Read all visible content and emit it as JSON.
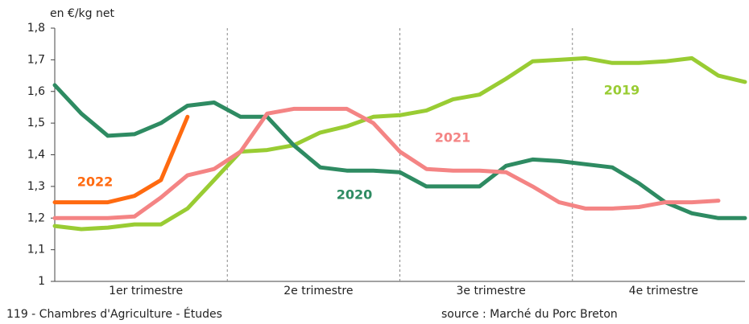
{
  "chart_data": {
    "type": "line",
    "y_unit_label": "en €/kg net",
    "quarters": [
      "1er trimestre",
      "2e trimestre",
      "3e trimestre",
      "4e trimestre"
    ],
    "footer_left": "119 - Chambres d'Agriculture - Études",
    "footer_right": "source :  Marché du Porc Breton",
    "x": [
      0,
      2,
      4,
      6,
      8,
      10,
      12,
      14,
      16,
      18,
      20,
      22,
      24,
      26,
      28,
      30,
      32,
      34,
      36,
      38,
      40,
      42,
      44,
      46,
      48,
      50,
      52
    ],
    "xlim": [
      0,
      52
    ],
    "xticks": [
      13,
      26,
      39
    ],
    "ylim": [
      1,
      1.8
    ],
    "yticks": [
      1,
      {
        "value": 1.1,
        "label": "1,1"
      },
      {
        "value": 1.2,
        "label": "1,2"
      },
      {
        "value": 1.3,
        "label": "1,3"
      },
      {
        "value": 1.4,
        "label": "1,4"
      },
      {
        "value": 1.5,
        "label": "1,5"
      },
      {
        "value": 1.6,
        "label": "1,6"
      },
      {
        "value": 1.7,
        "label": "1,7"
      },
      {
        "value": 1.8,
        "label": "1,8"
      }
    ],
    "series": [
      {
        "name": "2019",
        "color": "#99cc33",
        "values": [
          1.175,
          1.165,
          1.17,
          1.18,
          1.18,
          1.23,
          1.32,
          1.41,
          1.415,
          1.43,
          1.47,
          1.49,
          1.52,
          1.525,
          1.54,
          1.575,
          1.59,
          1.64,
          1.695,
          1.7,
          1.705,
          1.69,
          1.69,
          1.695,
          1.705,
          1.65,
          1.63
        ]
      },
      {
        "name": "2020",
        "color": "#2e8b62",
        "values": [
          1.62,
          1.53,
          1.46,
          1.465,
          1.5,
          1.555,
          1.565,
          1.52,
          1.52,
          1.43,
          1.36,
          1.35,
          1.35,
          1.345,
          1.3,
          1.3,
          1.3,
          1.365,
          1.385,
          1.38,
          1.37,
          1.36,
          1.31,
          1.25,
          1.215,
          1.2,
          1.2
        ]
      },
      {
        "name": "2021",
        "color": "#f48484",
        "values": [
          1.2,
          1.2,
          1.2,
          1.205,
          1.265,
          1.335,
          1.355,
          1.41,
          1.53,
          1.545,
          1.545,
          1.545,
          1.5,
          1.41,
          1.355,
          1.35,
          1.35,
          1.345,
          1.3,
          1.25,
          1.23,
          1.23,
          1.235,
          1.25,
          1.25,
          1.255,
          null
        ]
      },
      {
        "name": "2022",
        "color": "#ff6a10",
        "values": [
          1.25,
          1.25,
          1.25,
          1.27,
          1.32,
          1.52,
          null,
          null,
          null,
          null,
          null,
          null,
          null,
          null,
          null,
          null,
          null,
          null,
          null,
          null,
          null,
          null,
          null,
          null,
          null,
          null,
          null
        ]
      }
    ]
  }
}
